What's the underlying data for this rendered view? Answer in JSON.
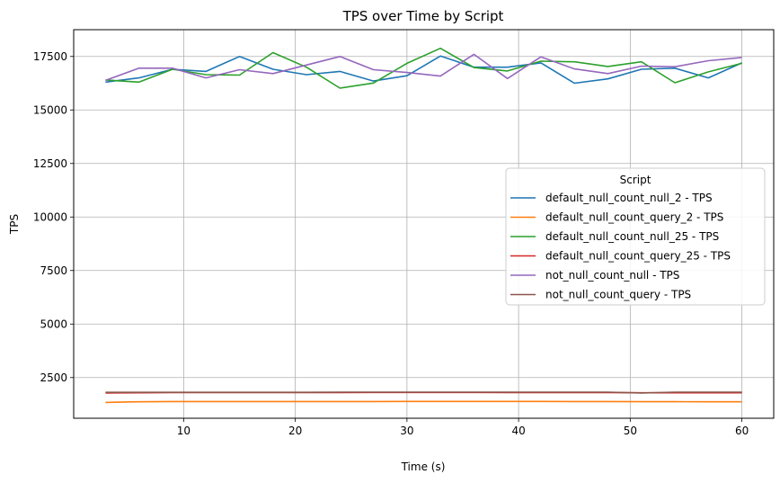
{
  "chart_data": {
    "type": "line",
    "title": "TPS over Time by Script",
    "xlabel": "Time (s)",
    "ylabel": "TPS",
    "xlim": [
      0.15,
      62.85
    ],
    "ylim": [
      600,
      18750
    ],
    "xticks": [
      10,
      20,
      30,
      40,
      50,
      60
    ],
    "xtick_labels": [
      "10",
      "20",
      "30",
      "40",
      "50",
      "60"
    ],
    "yticks": [
      2500,
      5000,
      7500,
      10000,
      12500,
      15000,
      17500
    ],
    "ytick_labels": [
      "2500",
      "5000",
      "7500",
      "10000",
      "12500",
      "15000",
      "17500"
    ],
    "grid": true,
    "legend": {
      "title": "Script",
      "placement": "center-right"
    },
    "x": [
      3,
      6,
      9,
      12,
      15,
      18,
      21,
      24,
      27,
      30,
      33,
      36,
      39,
      42,
      45,
      48,
      51,
      54,
      57,
      60
    ],
    "series": [
      {
        "name": "default_null_count_null_2 - TPS",
        "color": "#1f77b4",
        "values": [
          16300,
          16500,
          16900,
          16800,
          17500,
          16900,
          16650,
          16800,
          16350,
          16600,
          17520,
          17000,
          17000,
          17200,
          16250,
          16450,
          16900,
          16950,
          16500,
          17200
        ]
      },
      {
        "name": "default_null_count_query_2 - TPS",
        "color": "#ff7f0e",
        "values": [
          1340,
          1370,
          1380,
          1380,
          1380,
          1380,
          1380,
          1380,
          1380,
          1385,
          1385,
          1385,
          1385,
          1385,
          1380,
          1380,
          1375,
          1375,
          1370,
          1370
        ]
      },
      {
        "name": "default_null_count_null_25 - TPS",
        "color": "#2ca02c",
        "values": [
          16400,
          16300,
          16900,
          16650,
          16630,
          17680,
          17000,
          16020,
          16260,
          17180,
          17880,
          16980,
          16820,
          17280,
          17250,
          17030,
          17250,
          16270,
          16780,
          17180
        ]
      },
      {
        "name": "default_null_count_query_25 - TPS",
        "color": "#d62728",
        "values": [
          1780,
          1790,
          1800,
          1800,
          1800,
          1800,
          1800,
          1800,
          1805,
          1805,
          1805,
          1805,
          1800,
          1800,
          1800,
          1800,
          1790,
          1790,
          1790,
          1790
        ]
      },
      {
        "name": "not_null_count_null - TPS",
        "color": "#9467bd",
        "values": [
          16380,
          16950,
          16950,
          16500,
          16880,
          16700,
          17100,
          17500,
          16880,
          16750,
          16580,
          17600,
          16470,
          17480,
          16920,
          16700,
          17050,
          17020,
          17300,
          17450
        ]
      },
      {
        "name": "not_null_count_query - TPS",
        "color": "#8c564b",
        "values": [
          1810,
          1810,
          1810,
          1810,
          1810,
          1810,
          1810,
          1820,
          1820,
          1820,
          1820,
          1820,
          1820,
          1820,
          1820,
          1820,
          1780,
          1820,
          1820,
          1820
        ]
      }
    ]
  }
}
